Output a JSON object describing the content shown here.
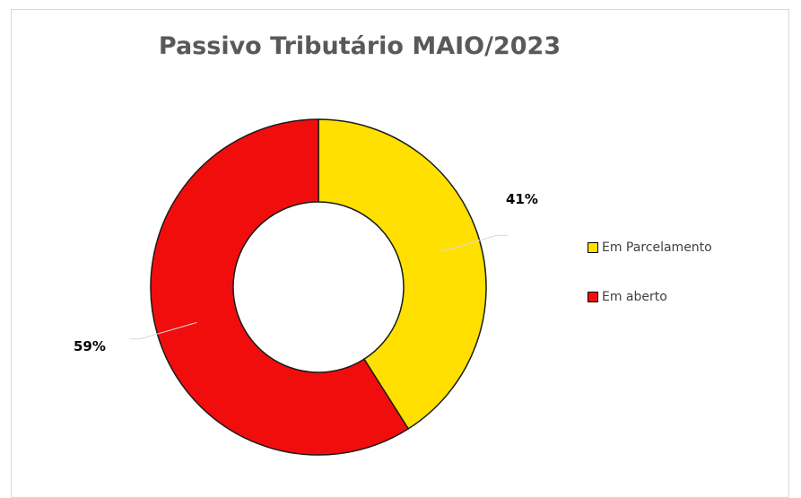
{
  "chart_data": {
    "type": "pie",
    "subtype": "doughnut",
    "title": "Passivo Tributário MAIO/2023",
    "categories": [
      "Em Parcelamento",
      "Em aberto"
    ],
    "values": [
      41,
      59
    ],
    "data_labels": [
      "41%",
      "59%"
    ],
    "colors": [
      "#ffe000",
      "#f20d0d"
    ],
    "legend_position": "right"
  }
}
